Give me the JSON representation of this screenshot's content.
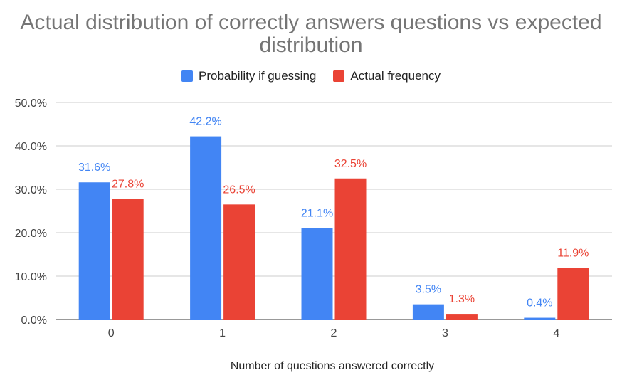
{
  "chart_data": {
    "type": "bar",
    "title": "Actual distribution of correctly answers questions vs expected distribution",
    "xlabel": "Number of questions answered correctly",
    "ylabel": "",
    "categories": [
      "0",
      "1",
      "2",
      "3",
      "4"
    ],
    "ylim": [
      0,
      50
    ],
    "yticks": [
      "0.0%",
      "10.0%",
      "20.0%",
      "30.0%",
      "40.0%",
      "50.0%"
    ],
    "grid": true,
    "legend_position": "top",
    "series": [
      {
        "name": "Probability if guessing",
        "color": "#4285f4",
        "values": [
          31.6,
          42.2,
          21.1,
          3.5,
          0.4
        ],
        "labels": [
          "31.6%",
          "42.2%",
          "21.1%",
          "3.5%",
          "0.4%"
        ]
      },
      {
        "name": "Actual frequency",
        "color": "#ea4335",
        "values": [
          27.8,
          26.5,
          32.5,
          1.3,
          11.9
        ],
        "labels": [
          "27.8%",
          "26.5%",
          "32.5%",
          "1.3%",
          "11.9%"
        ]
      }
    ]
  }
}
